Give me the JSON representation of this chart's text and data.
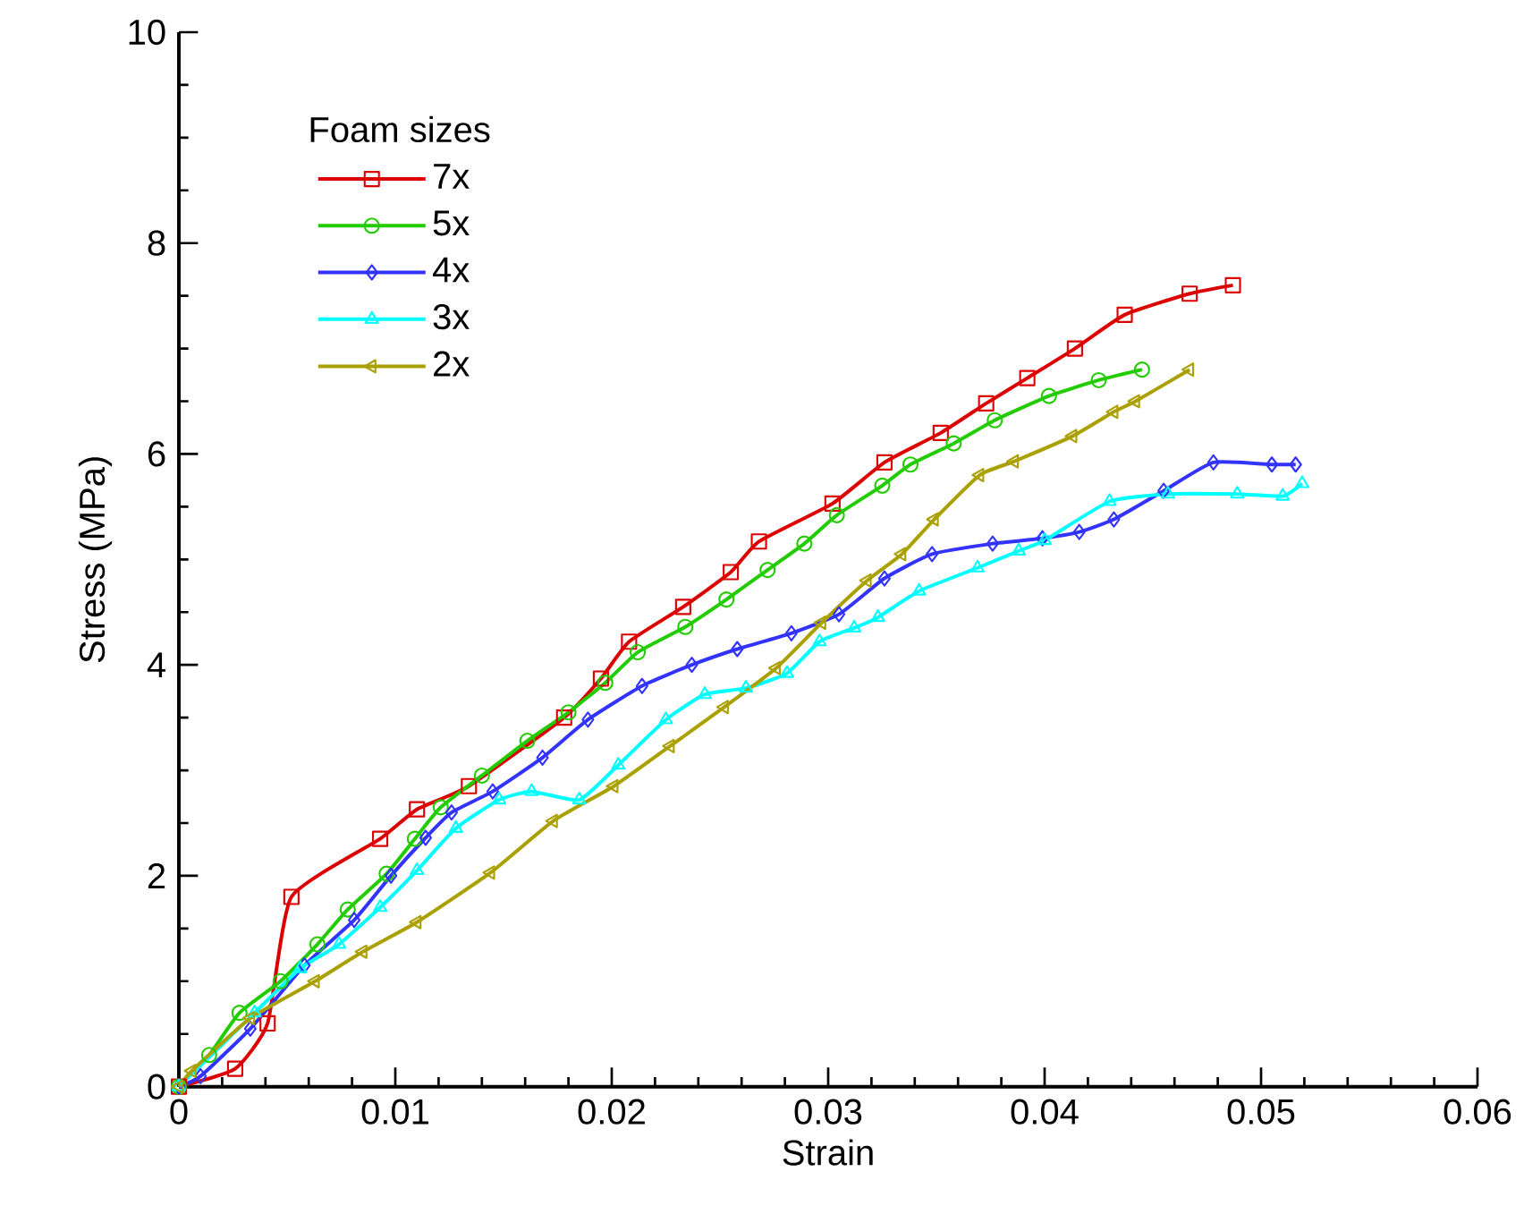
{
  "chart_data": {
    "type": "line",
    "xlabel": "Strain",
    "ylabel": "Stress (MPa)",
    "legend_title": "Foam sizes",
    "legend": "top left",
    "grid": false,
    "xlim": [
      0,
      0.06
    ],
    "ylim": [
      0,
      10
    ],
    "xticks": [
      0,
      0.01,
      0.02,
      0.03,
      0.04,
      0.05,
      0.06
    ],
    "yticks": [
      0,
      2,
      4,
      6,
      8,
      10
    ],
    "series": [
      {
        "name": "7x",
        "color": "#dd0000",
        "marker": "square",
        "x": [
          0,
          0.0026,
          0.0041,
          0.0052,
          0.0093,
          0.011,
          0.0134,
          0.0178,
          0.0195,
          0.0208,
          0.0233,
          0.0255,
          0.0268,
          0.0302,
          0.0326,
          0.0352,
          0.0373,
          0.0392,
          0.0414,
          0.0437,
          0.0467,
          0.0487
        ],
        "values": [
          0,
          0.17,
          0.6,
          1.8,
          2.35,
          2.63,
          2.85,
          3.5,
          3.87,
          4.22,
          4.55,
          4.88,
          5.17,
          5.53,
          5.92,
          6.2,
          6.48,
          6.72,
          7.0,
          7.32,
          7.52,
          7.6
        ]
      },
      {
        "name": "5x",
        "color": "#22cc00",
        "marker": "circle",
        "x": [
          0,
          0.0014,
          0.0028,
          0.0047,
          0.0064,
          0.0078,
          0.0096,
          0.0109,
          0.0121,
          0.014,
          0.0161,
          0.018,
          0.0197,
          0.0212,
          0.0234,
          0.0253,
          0.0272,
          0.0289,
          0.0304,
          0.0325,
          0.0338,
          0.0358,
          0.0377,
          0.0402,
          0.0425,
          0.0445
        ],
        "values": [
          0,
          0.3,
          0.7,
          1.0,
          1.35,
          1.68,
          2.02,
          2.35,
          2.65,
          2.95,
          3.28,
          3.55,
          3.83,
          4.12,
          4.36,
          4.62,
          4.9,
          5.15,
          5.42,
          5.7,
          5.9,
          6.1,
          6.32,
          6.55,
          6.7,
          6.8
        ]
      },
      {
        "name": "4x",
        "color": "#3333ff",
        "marker": "diamond",
        "x": [
          0,
          0.001,
          0.0033,
          0.0058,
          0.0081,
          0.0098,
          0.0114,
          0.0126,
          0.0145,
          0.0168,
          0.0189,
          0.0214,
          0.0237,
          0.0258,
          0.0283,
          0.0305,
          0.0326,
          0.0348,
          0.0376,
          0.0399,
          0.0416,
          0.0432,
          0.0455,
          0.0478,
          0.0505,
          0.0516
        ],
        "values": [
          0,
          0.1,
          0.55,
          1.15,
          1.58,
          2.0,
          2.36,
          2.6,
          2.8,
          3.12,
          3.48,
          3.8,
          4.0,
          4.15,
          4.3,
          4.48,
          4.82,
          5.05,
          5.15,
          5.2,
          5.26,
          5.38,
          5.65,
          5.92,
          5.9,
          5.9
        ]
      },
      {
        "name": "3x",
        "color": "#00ffff",
        "marker": "triangle",
        "x": [
          0,
          0.0035,
          0.0056,
          0.0074,
          0.0093,
          0.011,
          0.0128,
          0.0148,
          0.0163,
          0.0185,
          0.0203,
          0.0225,
          0.0243,
          0.0262,
          0.0281,
          0.0296,
          0.0312,
          0.0323,
          0.0342,
          0.0369,
          0.0388,
          0.04,
          0.043,
          0.0457,
          0.0489,
          0.051,
          0.0519
        ],
        "values": [
          0,
          0.7,
          1.12,
          1.35,
          1.7,
          2.05,
          2.45,
          2.72,
          2.8,
          2.72,
          3.05,
          3.48,
          3.72,
          3.78,
          3.92,
          4.22,
          4.35,
          4.45,
          4.7,
          4.92,
          5.08,
          5.18,
          5.55,
          5.62,
          5.62,
          5.6,
          5.72
        ]
      },
      {
        "name": "2x",
        "color": "#aaa000",
        "marker": "triangle-left",
        "x": [
          0,
          0.0006,
          0.0033,
          0.0063,
          0.0085,
          0.011,
          0.0144,
          0.0173,
          0.0201,
          0.0227,
          0.0252,
          0.0276,
          0.0297,
          0.0318,
          0.0334,
          0.0349,
          0.037,
          0.0386,
          0.0413,
          0.0432,
          0.0442,
          0.0467
        ],
        "values": [
          0,
          0.15,
          0.65,
          1.0,
          1.28,
          1.56,
          2.03,
          2.52,
          2.85,
          3.23,
          3.6,
          3.97,
          4.4,
          4.8,
          5.05,
          5.38,
          5.8,
          5.93,
          6.17,
          6.4,
          6.5,
          6.8
        ]
      }
    ]
  }
}
